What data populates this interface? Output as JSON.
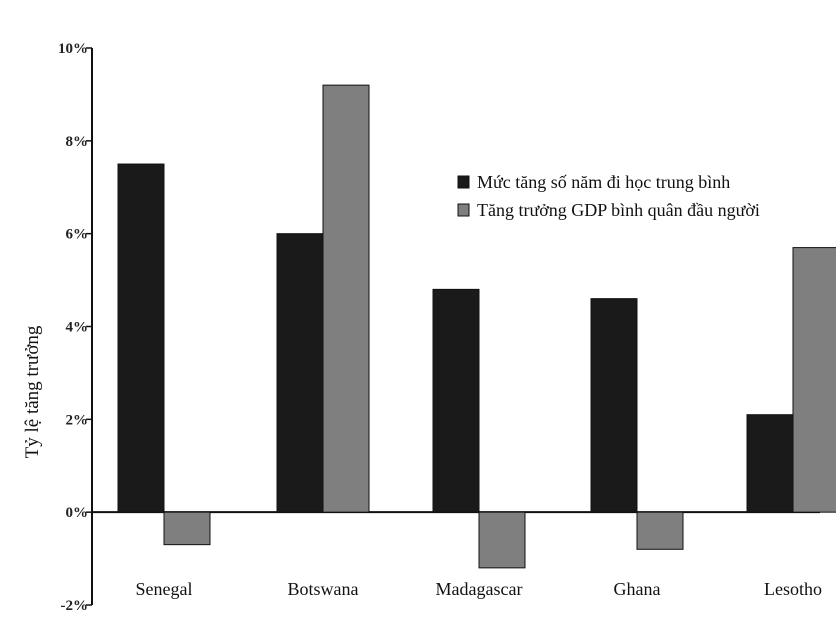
{
  "chart_data": {
    "type": "bar",
    "title": "",
    "ylabel": "Tỷ lệ tăng trưởng",
    "xlabel": "",
    "categories": [
      "Senegal",
      "Botswana",
      "Madagascar",
      "Ghana",
      "Lesotho"
    ],
    "series": [
      {
        "name": "Mức tăng số năm đi học trung bình",
        "color": "#1a1a1a",
        "values": [
          7.5,
          6.0,
          4.8,
          4.6,
          2.1
        ]
      },
      {
        "name": "Tăng trưởng GDP bình quân đầu người",
        "color": "#7f7f7f",
        "values": [
          -0.7,
          9.2,
          -1.2,
          -0.8,
          5.7
        ]
      }
    ],
    "ylim": [
      -2,
      10
    ],
    "yticks": [
      "-2%",
      "0%",
      "2%",
      "4%",
      "6%",
      "8%",
      "10%"
    ],
    "ytick_values": [
      -2,
      0,
      2,
      4,
      6,
      8,
      10
    ],
    "legend_position": "center-right",
    "grid": false
  }
}
